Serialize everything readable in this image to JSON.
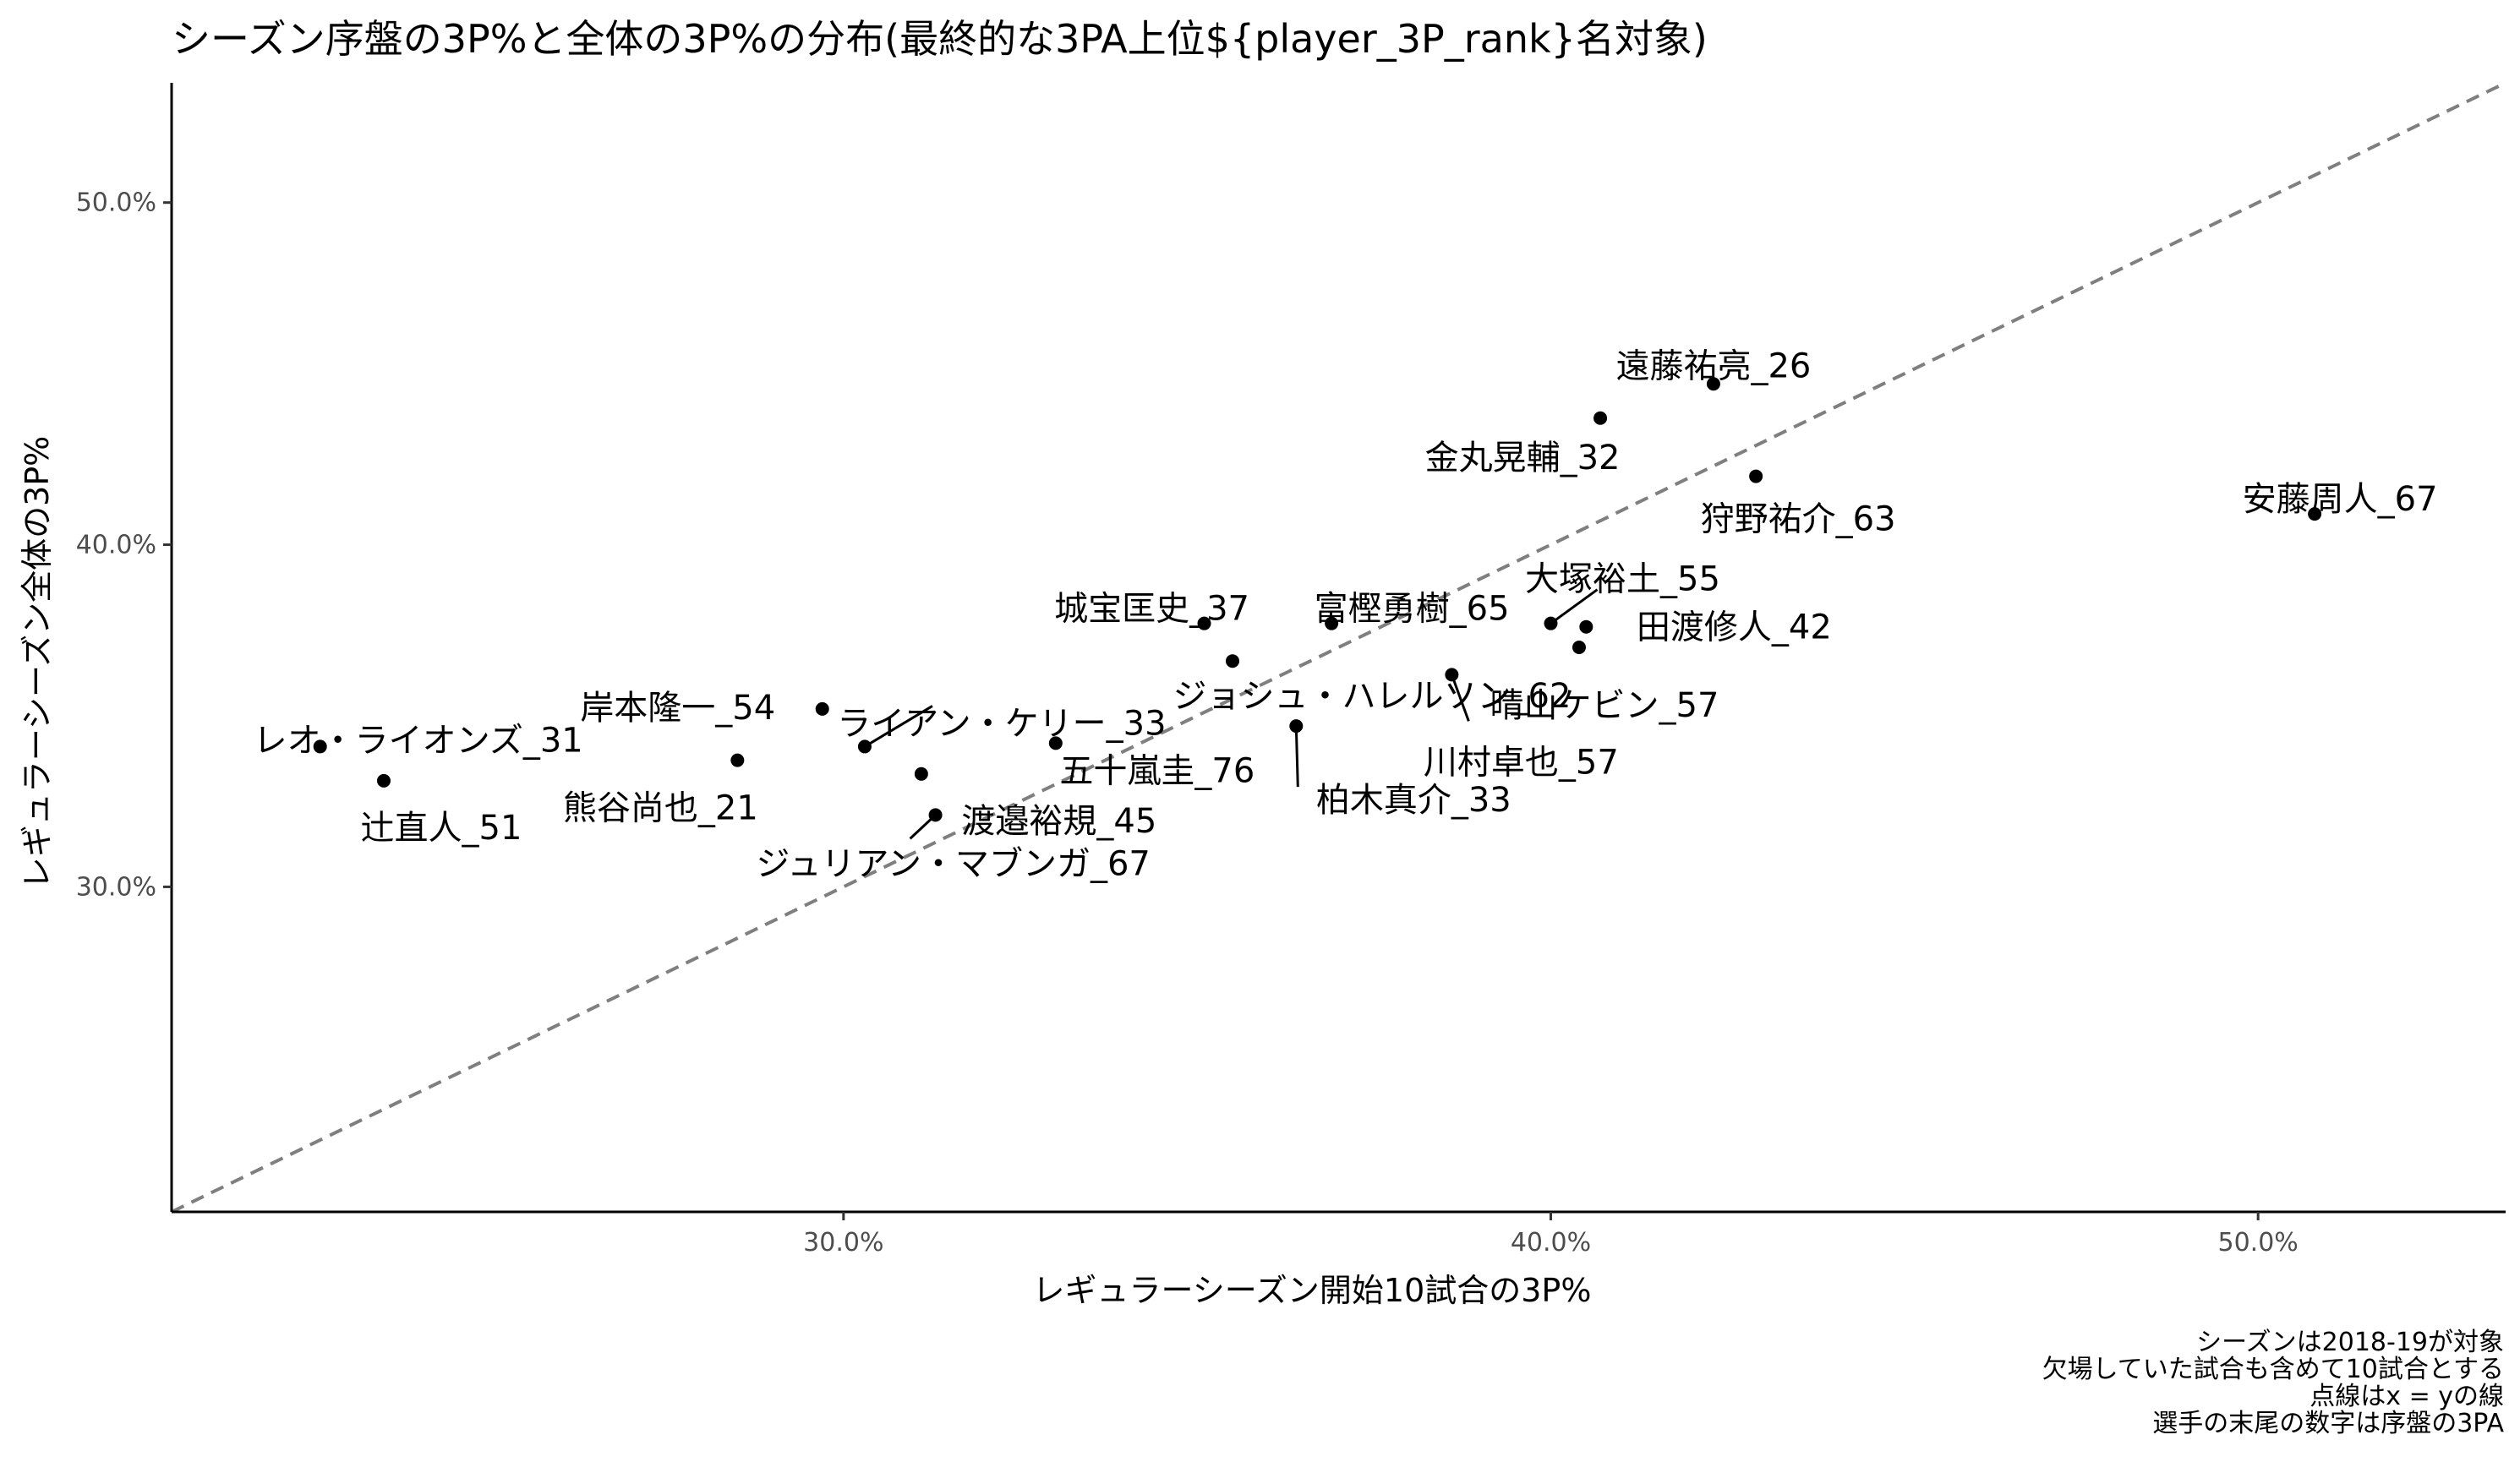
{
  "chart_data": {
    "type": "scatter",
    "title": "シーズン序盤の3P%と全体の3P%の分布(最終的な3PA上位${player_3P_rank}名対象)",
    "xlabel": "レギュラーシーズン開始10試合の3P%",
    "ylabel": "レギュラーシーズン全体の3P%",
    "xlim": [
      0.205,
      0.535
    ],
    "ylim": [
      0.205,
      0.535
    ],
    "x_ticks": [
      0.3,
      0.4,
      0.5
    ],
    "y_ticks": [
      0.3,
      0.4,
      0.5
    ],
    "x_tick_labels": [
      "30.0%",
      "40.0%",
      "50.0%"
    ],
    "y_tick_labels": [
      "30.0%",
      "40.0%",
      "50.0%"
    ],
    "grid": false,
    "reference_line": "x = y",
    "points": [
      {
        "label": "遠藤祐亮_26",
        "x": 0.423,
        "y": 0.447
      },
      {
        "label": "金丸晃輔_32",
        "x": 0.407,
        "y": 0.437
      },
      {
        "label": "狩野祐介_63",
        "x": 0.429,
        "y": 0.42
      },
      {
        "label": "安藤周人_67",
        "x": 0.508,
        "y": 0.409
      },
      {
        "label": "大塚裕土_55",
        "x": 0.4,
        "y": 0.377
      },
      {
        "label": "田渡修人_42",
        "x": 0.405,
        "y": 0.376
      },
      {
        "label": "晴山ケビン_57",
        "x": 0.404,
        "y": 0.37
      },
      {
        "label": "川村卓也_57",
        "x": 0.386,
        "y": 0.362
      },
      {
        "label": "城宝匡史_37",
        "x": 0.351,
        "y": 0.377
      },
      {
        "label": "富樫勇樹_65",
        "x": 0.369,
        "y": 0.377
      },
      {
        "label": "ジョシュ・ハレルソン_62",
        "x": 0.355,
        "y": 0.366
      },
      {
        "label": "柏木真介_33",
        "x": 0.364,
        "y": 0.347
      },
      {
        "label": "五十嵐圭_76",
        "x": 0.33,
        "y": 0.342
      },
      {
        "label": "岸本隆一_54",
        "x": 0.297,
        "y": 0.352
      },
      {
        "label": "ライアン・ケリー_33",
        "x": 0.303,
        "y": 0.341
      },
      {
        "label": "レオ・ライオンズ_31",
        "x": 0.226,
        "y": 0.341
      },
      {
        "label": "辻直人_51",
        "x": 0.235,
        "y": 0.331
      },
      {
        "label": "熊谷尚也_21",
        "x": 0.285,
        "y": 0.337
      },
      {
        "label": "渡邉裕規_45",
        "x": 0.311,
        "y": 0.333
      },
      {
        "label": "ジュリアン・マブンガ_67",
        "x": 0.313,
        "y": 0.321
      }
    ],
    "caption": [
      "シーズンは2018-19が対象",
      "欠場していた試合も含めて10試合とする",
      "点線はx = yの線",
      "選手の末尾の数字は序盤の3PA"
    ]
  }
}
